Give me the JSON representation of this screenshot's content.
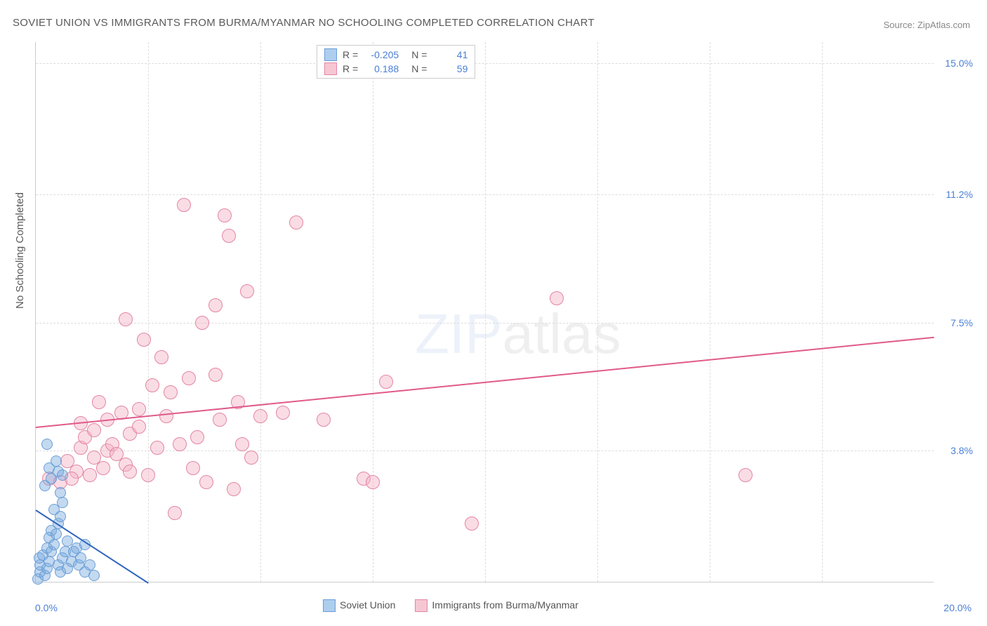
{
  "title": "SOVIET UNION VS IMMIGRANTS FROM BURMA/MYANMAR NO SCHOOLING COMPLETED CORRELATION CHART",
  "source": "Source: ZipAtlas.com",
  "ylabel": "No Schooling Completed",
  "xaxis": {
    "min_label": "0.0%",
    "max_label": "20.0%",
    "min": 0,
    "max": 20
  },
  "yaxis": {
    "ticks": [
      {
        "value": 3.8,
        "label": "3.8%"
      },
      {
        "value": 7.5,
        "label": "7.5%"
      },
      {
        "value": 11.2,
        "label": "11.2%"
      },
      {
        "value": 15.0,
        "label": "15.0%"
      }
    ],
    "min": 0,
    "max": 15.6
  },
  "xgrid_values": [
    2.5,
    5.0,
    7.5,
    10.0,
    12.5,
    15.0,
    17.5
  ],
  "legend": {
    "r_label": "R =",
    "n_label": "N =",
    "series": [
      {
        "swatch_fill": "#aeceee",
        "swatch_border": "#6a9ed6",
        "r": "-0.205",
        "n": "41"
      },
      {
        "swatch_fill": "#f6c7d3",
        "swatch_border": "#e386a4",
        "r": "0.188",
        "n": "59"
      }
    ]
  },
  "footer_legend": [
    {
      "swatch_fill": "#aeceee",
      "swatch_border": "#6a9ed6",
      "label": "Soviet Union"
    },
    {
      "swatch_fill": "#f6c7d3",
      "swatch_border": "#e386a4",
      "label": "Immigrants from Burma/Myanmar"
    }
  ],
  "watermark": {
    "zip": "ZIP",
    "atlas": "atlas"
  },
  "series_a": {
    "name": "Soviet Union",
    "fill": "rgba(122,170,222,0.45)",
    "stroke": "#6a9ed6",
    "radius": 8,
    "trend": {
      "x1": 0,
      "y1": 2.1,
      "x2": 2.5,
      "y2": 0,
      "color": "#3066c0",
      "width": 2
    },
    "points": [
      [
        0.05,
        0.1
      ],
      [
        0.1,
        0.3
      ],
      [
        0.1,
        0.5
      ],
      [
        0.08,
        0.7
      ],
      [
        0.15,
        0.8
      ],
      [
        0.2,
        0.2
      ],
      [
        0.25,
        0.4
      ],
      [
        0.3,
        0.6
      ],
      [
        0.25,
        1.0
      ],
      [
        0.35,
        0.9
      ],
      [
        0.3,
        1.3
      ],
      [
        0.4,
        1.1
      ],
      [
        0.35,
        1.5
      ],
      [
        0.45,
        1.4
      ],
      [
        0.5,
        0.5
      ],
      [
        0.55,
        0.3
      ],
      [
        0.6,
        0.7
      ],
      [
        0.65,
        0.9
      ],
      [
        0.5,
        1.7
      ],
      [
        0.55,
        1.9
      ],
      [
        0.4,
        2.1
      ],
      [
        0.6,
        2.3
      ],
      [
        0.7,
        0.4
      ],
      [
        0.7,
        1.2
      ],
      [
        0.8,
        0.6
      ],
      [
        0.85,
        0.9
      ],
      [
        0.9,
        1.0
      ],
      [
        0.95,
        0.5
      ],
      [
        1.0,
        0.7
      ],
      [
        1.1,
        0.3
      ],
      [
        1.1,
        1.1
      ],
      [
        1.2,
        0.5
      ],
      [
        1.3,
        0.2
      ],
      [
        0.2,
        2.8
      ],
      [
        0.35,
        3.0
      ],
      [
        0.5,
        3.2
      ],
      [
        0.3,
        3.3
      ],
      [
        0.45,
        3.5
      ],
      [
        0.6,
        3.1
      ],
      [
        0.25,
        4.0
      ],
      [
        0.55,
        2.6
      ]
    ]
  },
  "series_b": {
    "name": "Immigrants from Burma/Myanmar",
    "fill": "rgba(243,178,198,0.45)",
    "stroke": "#e386a4",
    "radius": 10,
    "trend": {
      "x1": 0,
      "y1": 4.5,
      "x2": 20,
      "y2": 7.1,
      "color": "#e05a8a",
      "width": 2
    },
    "points": [
      [
        0.3,
        3.0
      ],
      [
        0.55,
        2.9
      ],
      [
        0.9,
        3.2
      ],
      [
        1.0,
        3.9
      ],
      [
        1.1,
        4.2
      ],
      [
        1.3,
        3.6
      ],
      [
        1.3,
        4.4
      ],
      [
        1.5,
        3.3
      ],
      [
        1.6,
        3.8
      ],
      [
        1.7,
        4.0
      ],
      [
        1.8,
        3.7
      ],
      [
        1.9,
        4.9
      ],
      [
        2.0,
        3.4
      ],
      [
        2.1,
        4.3
      ],
      [
        2.3,
        5.0
      ],
      [
        2.3,
        4.5
      ],
      [
        2.5,
        3.1
      ],
      [
        2.6,
        5.7
      ],
      [
        2.8,
        6.5
      ],
      [
        2.9,
        4.8
      ],
      [
        3.0,
        5.5
      ],
      [
        3.1,
        2.0
      ],
      [
        3.3,
        10.9
      ],
      [
        3.4,
        5.9
      ],
      [
        3.6,
        4.2
      ],
      [
        3.7,
        7.5
      ],
      [
        3.8,
        2.9
      ],
      [
        4.0,
        6.0
      ],
      [
        4.0,
        8.0
      ],
      [
        4.1,
        4.7
      ],
      [
        4.2,
        10.6
      ],
      [
        4.3,
        10.0
      ],
      [
        4.4,
        2.7
      ],
      [
        4.5,
        5.2
      ],
      [
        4.7,
        8.4
      ],
      [
        4.8,
        3.6
      ],
      [
        5.0,
        4.8
      ],
      [
        5.5,
        4.9
      ],
      [
        5.8,
        10.4
      ],
      [
        6.4,
        4.7
      ],
      [
        7.3,
        3.0
      ],
      [
        7.5,
        2.9
      ],
      [
        7.8,
        5.8
      ],
      [
        9.7,
        1.7
      ],
      [
        11.6,
        8.2
      ],
      [
        15.8,
        3.1
      ],
      [
        2.0,
        7.6
      ],
      [
        1.4,
        5.2
      ],
      [
        0.7,
        3.5
      ],
      [
        2.7,
        3.9
      ],
      [
        3.2,
        4.0
      ],
      [
        1.0,
        4.6
      ],
      [
        1.6,
        4.7
      ],
      [
        0.8,
        3.0
      ],
      [
        2.1,
        3.2
      ],
      [
        4.6,
        4.0
      ],
      [
        2.4,
        7.0
      ],
      [
        1.2,
        3.1
      ],
      [
        3.5,
        3.3
      ]
    ]
  }
}
